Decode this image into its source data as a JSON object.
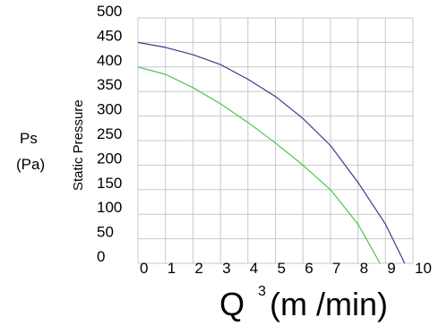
{
  "chart_data": {
    "type": "line",
    "x_label_main": "Q",
    "x_label_sup": "3",
    "x_label_unit": "(m /min)",
    "y_label_rotated": "Static Pressure",
    "y_label_side_1": "Ps",
    "y_label_side_2": "(Pa)",
    "xlim": [
      0,
      10
    ],
    "ylim": [
      0,
      500
    ],
    "x_ticks": [
      "0",
      "1",
      "2",
      "3",
      "4",
      "5",
      "6",
      "7",
      "8",
      "9",
      "10"
    ],
    "y_ticks": [
      "0",
      "50",
      "100",
      "150",
      "200",
      "250",
      "300",
      "350",
      "400",
      "450",
      "500"
    ],
    "grid": true,
    "series": [
      {
        "color": "#3a3a8c",
        "x": [
          0,
          1,
          2,
          3,
          4,
          5,
          6,
          7,
          8,
          9,
          9.7
        ],
        "y": [
          450,
          440,
          425,
          405,
          375,
          340,
          295,
          240,
          165,
          80,
          0
        ]
      },
      {
        "color": "#4fc24f",
        "x": [
          0,
          1,
          2,
          3,
          4,
          5,
          6,
          7,
          8,
          8.8
        ],
        "y": [
          400,
          385,
          358,
          325,
          287,
          245,
          200,
          150,
          80,
          0
        ]
      }
    ]
  }
}
